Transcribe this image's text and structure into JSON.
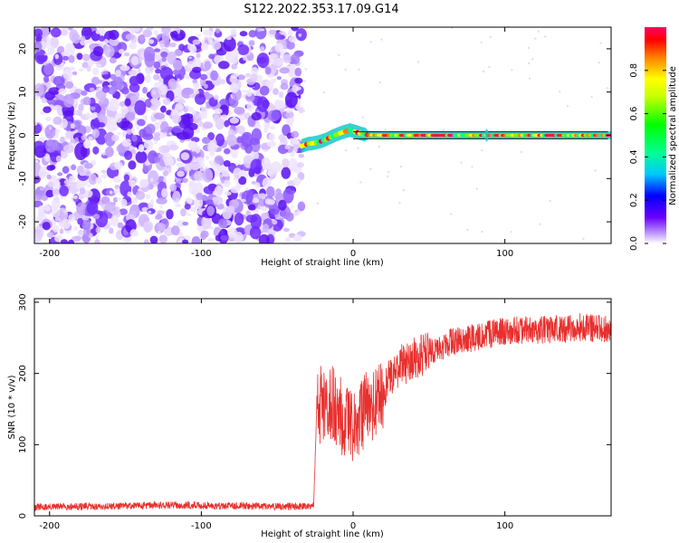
{
  "title": "S122.2022.353.17.09.G14",
  "top_plot": {
    "xlabel": "Height of straight line (km)",
    "ylabel": "Frequency (Hz)"
  },
  "bottom_plot": {
    "xlabel": "Height of straight line (km)",
    "ylabel": "SNR (10 * v/v)"
  },
  "colorbar": {
    "label": "Normalized spectral amplitude",
    "ticks": [
      "0.0",
      "0.2",
      "0.4",
      "0.6",
      "0.8"
    ]
  },
  "chart_data": [
    {
      "type": "heatmap",
      "title": "S122.2022.353.17.09.G14",
      "xlabel": "Height of straight line (km)",
      "ylabel": "Frequency (Hz)",
      "xlim": [
        -210,
        170
      ],
      "ylim": [
        -25,
        25
      ],
      "xticks": [
        -200,
        -100,
        0,
        100
      ],
      "yticks": [
        -20,
        -10,
        0,
        10,
        20
      ],
      "grid": false,
      "noise_region_x": [
        -210,
        -34
      ],
      "signal_frequency_track": {
        "x": [
          -34,
          -30,
          -26,
          -22,
          -18,
          -14,
          -10,
          -6,
          -2,
          2,
          6,
          10,
          20,
          30,
          40,
          60,
          88,
          100,
          130,
          170
        ],
        "y": [
          -2.5,
          -2,
          -1.8,
          -1.5,
          -1,
          -0.3,
          0.3,
          0.8,
          1.2,
          0.8,
          0.3,
          0.1,
          0,
          0,
          0,
          0,
          0,
          0,
          0,
          0
        ]
      },
      "colorbar": {
        "label": "Normalized spectral amplitude",
        "range": [
          0,
          1
        ],
        "ticks": [
          0.0,
          0.2,
          0.4,
          0.6,
          0.8
        ],
        "colormap": [
          "#ffffff",
          "#c8a6ff",
          "#6a00ff",
          "#0000ff",
          "#00c8ff",
          "#00ff90",
          "#00ff00",
          "#c8ff00",
          "#ffff00",
          "#ff8000",
          "#ff0000",
          "#ff0060"
        ]
      }
    },
    {
      "type": "line",
      "xlabel": "Height of straight line (km)",
      "ylabel": "SNR (10 * v/v)",
      "xlim": [
        -210,
        170
      ],
      "ylim": [
        0,
        305
      ],
      "xticks": [
        -200,
        -100,
        0,
        100
      ],
      "yticks": [
        0,
        100,
        200,
        300
      ],
      "grid": false,
      "color": "#e8302e",
      "series": [
        {
          "x": [
            -210,
            -190,
            -170,
            -150,
            -130,
            -110,
            -90,
            -70,
            -50,
            -30,
            -26,
            -24,
            -20,
            -16,
            -12,
            -8,
            -4,
            0,
            4,
            8,
            12,
            16,
            20,
            25,
            30,
            35,
            40,
            45,
            50,
            55,
            60,
            65,
            70,
            80,
            90,
            100,
            110,
            120,
            130,
            140,
            150,
            160,
            170
          ],
          "y": [
            12,
            13,
            13,
            14,
            15,
            15,
            14,
            14,
            13,
            14,
            15,
            150,
            160,
            165,
            150,
            140,
            130,
            120,
            130,
            150,
            150,
            160,
            175,
            195,
            210,
            215,
            220,
            225,
            230,
            235,
            240,
            245,
            245,
            250,
            255,
            260,
            262,
            260,
            262,
            262,
            265,
            262,
            262
          ]
        }
      ]
    }
  ]
}
